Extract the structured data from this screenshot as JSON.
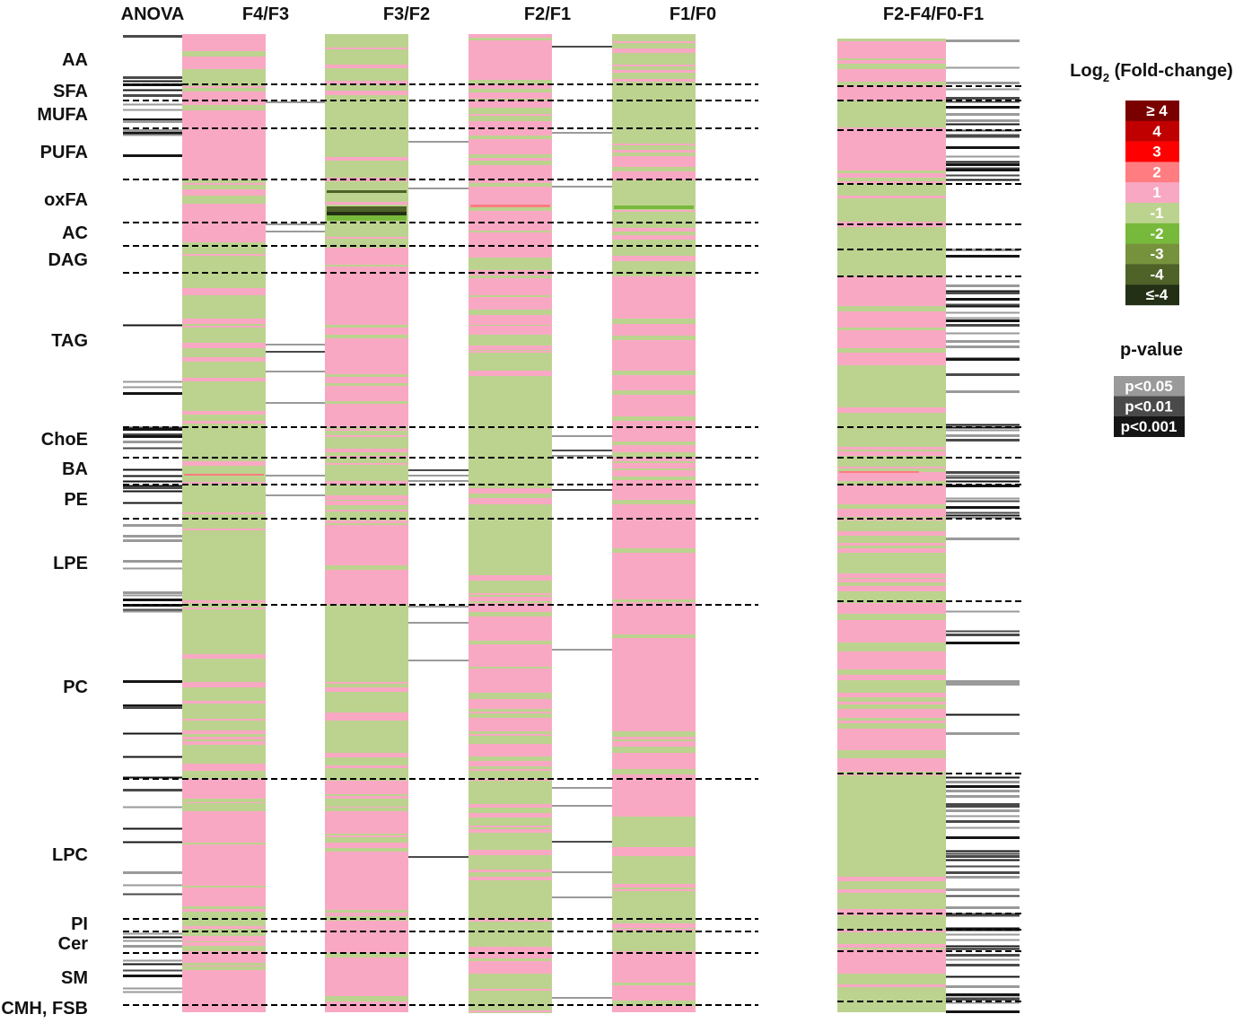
{
  "chart_data": {
    "type": "heatmap",
    "title": "",
    "columns": {
      "anova": "ANOVA",
      "comparisons": [
        "F4/F3",
        "F3/F2",
        "F2/F1",
        "F1/F0"
      ],
      "combined": "F2-F4/F0-F1"
    },
    "lipid_classes": [
      "AA",
      "SFA",
      "MUFA",
      "PUFA",
      "oxFA",
      "AC",
      "DAG",
      "TAG",
      "ChoE",
      "BA",
      "PE",
      "LPE",
      "PC",
      "LPC",
      "PI",
      "Cer",
      "SM",
      "CMH, FSB"
    ],
    "fold_change_legend": {
      "title_prefix": "Log",
      "title_subscript": "2",
      "title_suffix": " (Fold-change)",
      "bins": [
        {
          "label": "≥ 4",
          "color": "#7a0000"
        },
        {
          "label": "4",
          "color": "#c00000"
        },
        {
          "label": "3",
          "color": "#ff0000"
        },
        {
          "label": "2",
          "color": "#ff7c80"
        },
        {
          "label": "1",
          "color": "#f9a8c4"
        },
        {
          "label": "-1",
          "color": "#bcd38f"
        },
        {
          "label": "-2",
          "color": "#77b93a"
        },
        {
          "label": "-3",
          "color": "#77923c"
        },
        {
          "label": "-4",
          "color": "#4f6228"
        },
        {
          "label": "≤-4",
          "color": "#243015"
        }
      ]
    },
    "pvalue_legend": {
      "title": "p-value",
      "bins": [
        {
          "label": "p<0.05",
          "color": "#9a9a9a"
        },
        {
          "label": "p<0.01",
          "color": "#4a4a4a"
        },
        {
          "label": "p<0.001",
          "color": "#151515"
        }
      ]
    },
    "cell_colors": {
      "pink": "#f9a8c4",
      "green": "#bcd38f"
    }
  }
}
